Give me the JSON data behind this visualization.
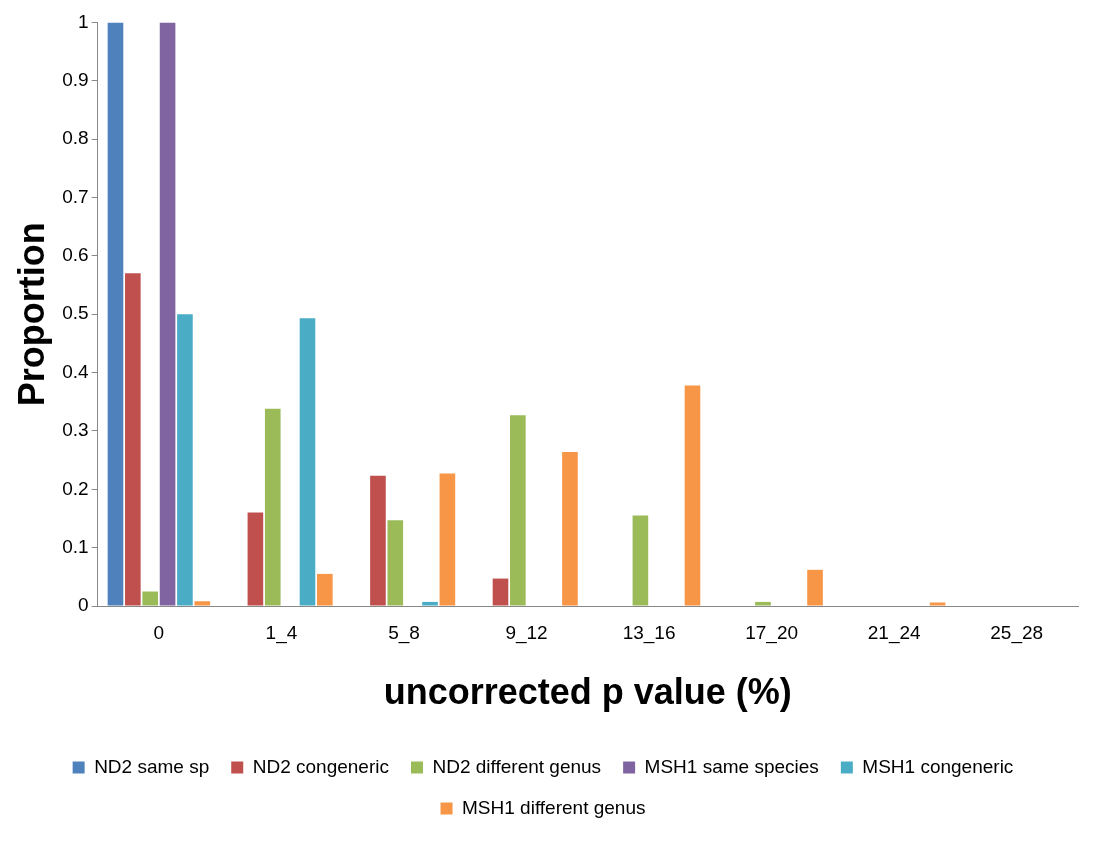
{
  "chart_data": {
    "type": "bar",
    "xlabel": "uncorrected p value (%)",
    "ylabel": "Proportion",
    "categories": [
      "0",
      "1_4",
      "5_8",
      "9_12",
      "13_16",
      "17_20",
      "21_24",
      "25_28"
    ],
    "series": [
      {
        "name": "ND2 same sp",
        "color": "#4f81bd",
        "values": [
          1,
          0,
          0,
          0,
          0,
          0,
          0,
          0
        ]
      },
      {
        "name": "ND2 congeneric",
        "color": "#c0504d",
        "values": [
          0.57,
          0.16,
          0.223,
          0.047,
          0,
          0,
          0,
          0
        ]
      },
      {
        "name": "ND2 different genus",
        "color": "#9bbb59",
        "values": [
          0.025,
          0.338,
          0.147,
          0.327,
          0.155,
          0.007,
          0,
          0
        ]
      },
      {
        "name": "MSH1 same species",
        "color": "#8064a2",
        "values": [
          1,
          0,
          0,
          0,
          0,
          0,
          0,
          0
        ]
      },
      {
        "name": "MSH1 congeneric",
        "color": "#4bacc6",
        "values": [
          0.5,
          0.493,
          0.007,
          0,
          0,
          0,
          0,
          0
        ]
      },
      {
        "name": "MSH1 different genus",
        "color": "#f79646",
        "values": [
          0.008,
          0.055,
          0.227,
          0.264,
          0.378,
          0.062,
          0.006,
          0
        ]
      }
    ],
    "ylim": [
      0,
      1
    ],
    "yticks": [
      0,
      0.1,
      0.2,
      0.3,
      0.4,
      0.5,
      0.6,
      0.7,
      0.8,
      0.9,
      1
    ],
    "grid": false,
    "legend": "bottom"
  }
}
